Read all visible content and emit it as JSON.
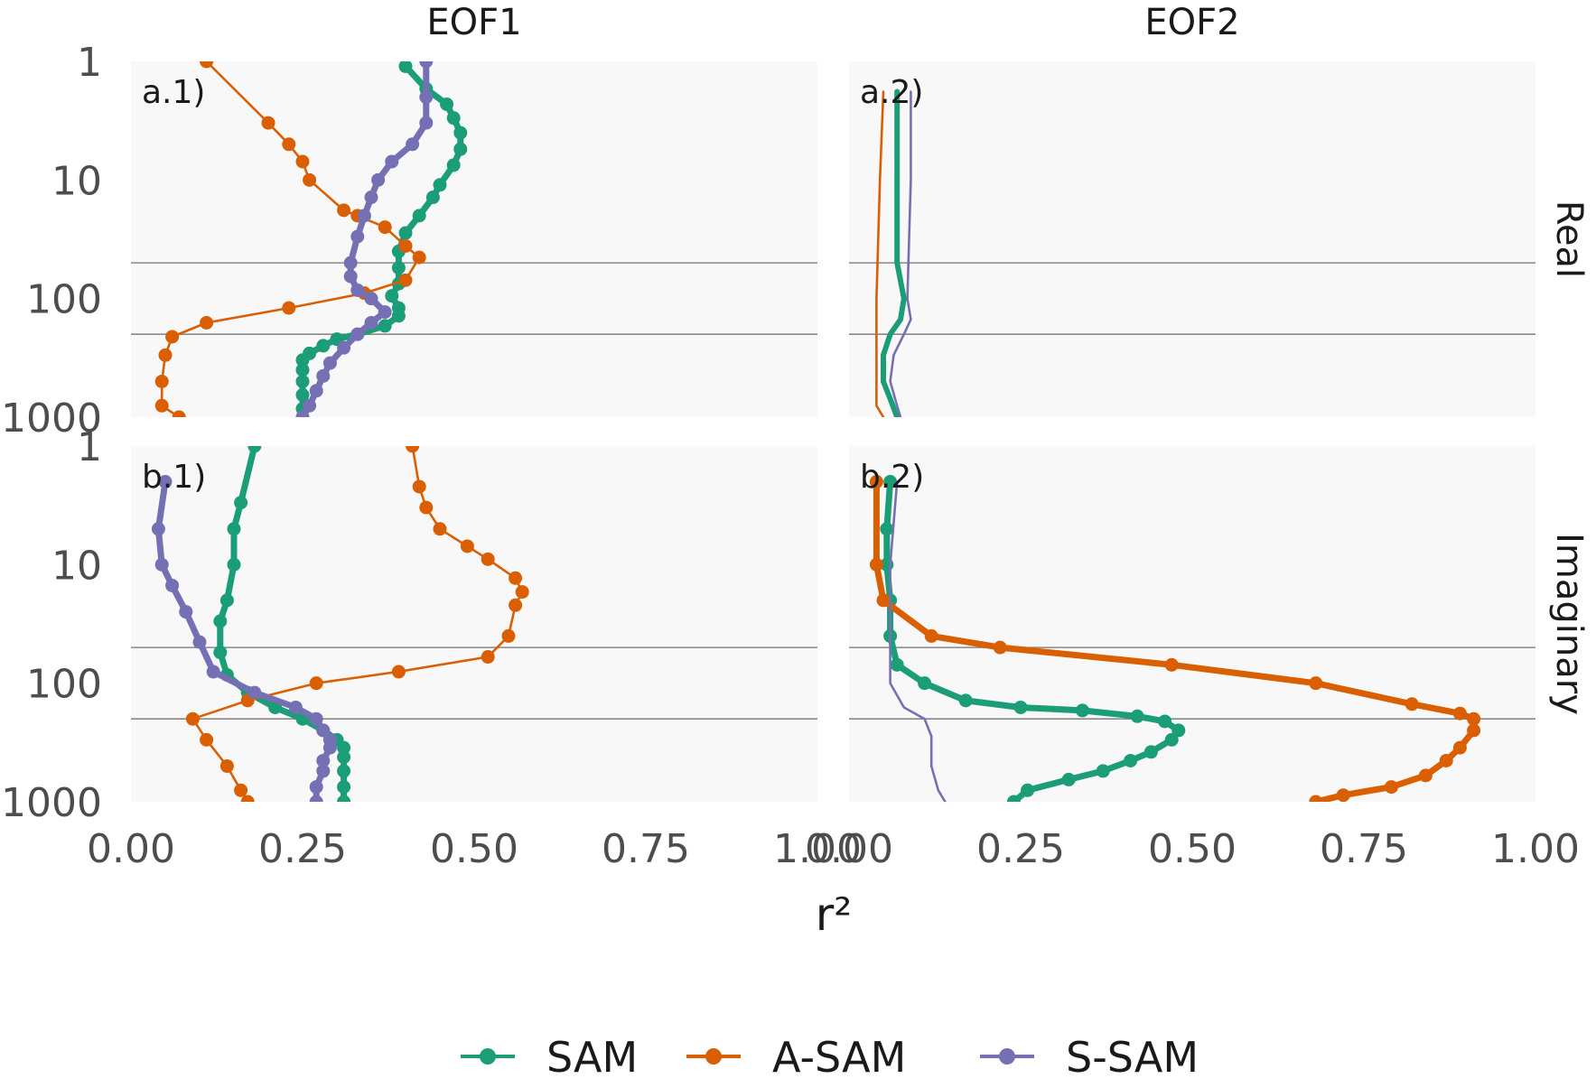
{
  "colors": {
    "SAM": "#1b9e77",
    "A-SAM": "#d95f02",
    "S-SAM": "#7570b3"
  },
  "chart_data": {
    "type": "line",
    "xlabel": "r²",
    "ylabel": "",
    "xlim": [
      0,
      1
    ],
    "ylim": [
      1000,
      1
    ],
    "y_scale": "log",
    "x_ticks": [
      "0.00",
      "0.25",
      "0.50",
      "0.75",
      "1.00"
    ],
    "y_ticks": [
      "1",
      "10",
      "100",
      "1000"
    ],
    "columns": [
      "EOF1",
      "EOF2"
    ],
    "rows": [
      "Real",
      "Imaginary"
    ],
    "hlines": [
      50,
      200
    ],
    "legend": {
      "position": "bottom",
      "entries": [
        "SAM",
        "A-SAM",
        "S-SAM"
      ]
    },
    "panels": [
      {
        "tag": "a.1)",
        "column": "EOF1",
        "row": "Real",
        "series": [
          {
            "name": "SAM",
            "emphasis": "thick-points",
            "points": [
              [
                0.4,
                1.1
              ],
              [
                0.43,
                1.7
              ],
              [
                0.46,
                2.3
              ],
              [
                0.47,
                3
              ],
              [
                0.48,
                4
              ],
              [
                0.48,
                5.5
              ],
              [
                0.47,
                7.5
              ],
              [
                0.45,
                11
              ],
              [
                0.44,
                14
              ],
              [
                0.42,
                20
              ],
              [
                0.4,
                28
              ],
              [
                0.39,
                40
              ],
              [
                0.39,
                55
              ],
              [
                0.39,
                75
              ],
              [
                0.38,
                95
              ],
              [
                0.39,
                120
              ],
              [
                0.39,
                140
              ],
              [
                0.37,
                170
              ],
              [
                0.33,
                200
              ],
              [
                0.3,
                220
              ],
              [
                0.28,
                250
              ],
              [
                0.26,
                290
              ],
              [
                0.25,
                330
              ],
              [
                0.25,
                400
              ],
              [
                0.25,
                500
              ],
              [
                0.25,
                650
              ],
              [
                0.25,
                850
              ],
              [
                0.25,
                1000
              ]
            ]
          },
          {
            "name": "A-SAM",
            "emphasis": "thin-points",
            "points": [
              [
                0.11,
                1
              ],
              [
                0.2,
                3.3
              ],
              [
                0.23,
                5
              ],
              [
                0.25,
                7
              ],
              [
                0.26,
                10
              ],
              [
                0.31,
                18
              ],
              [
                0.33,
                20
              ],
              [
                0.37,
                25
              ],
              [
                0.4,
                36
              ],
              [
                0.42,
                45
              ],
              [
                0.4,
                70
              ],
              [
                0.34,
                90
              ],
              [
                0.23,
                120
              ],
              [
                0.11,
                160
              ],
              [
                0.06,
                210
              ],
              [
                0.05,
                300
              ],
              [
                0.045,
                500
              ],
              [
                0.045,
                800
              ],
              [
                0.07,
                1000
              ]
            ]
          },
          {
            "name": "S-SAM",
            "emphasis": "thick-points",
            "points": [
              [
                0.43,
                1
              ],
              [
                0.43,
                2
              ],
              [
                0.43,
                3.3
              ],
              [
                0.41,
                5
              ],
              [
                0.38,
                7
              ],
              [
                0.36,
                10
              ],
              [
                0.35,
                14
              ],
              [
                0.34,
                20
              ],
              [
                0.33,
                30
              ],
              [
                0.32,
                50
              ],
              [
                0.32,
                65
              ],
              [
                0.33,
                85
              ],
              [
                0.35,
                100
              ],
              [
                0.37,
                130
              ],
              [
                0.35,
                160
              ],
              [
                0.33,
                200
              ],
              [
                0.31,
                260
              ],
              [
                0.29,
                350
              ],
              [
                0.28,
                450
              ],
              [
                0.27,
                600
              ],
              [
                0.26,
                800
              ],
              [
                0.25,
                1000
              ]
            ]
          }
        ]
      },
      {
        "tag": "a.2)",
        "column": "EOF2",
        "row": "Real",
        "series": [
          {
            "name": "SAM",
            "emphasis": "thick",
            "points": [
              [
                0.07,
                1.8
              ],
              [
                0.07,
                5
              ],
              [
                0.07,
                20
              ],
              [
                0.07,
                50
              ],
              [
                0.08,
                100
              ],
              [
                0.075,
                150
              ],
              [
                0.06,
                200
              ],
              [
                0.05,
                300
              ],
              [
                0.05,
                500
              ],
              [
                0.06,
                700
              ],
              [
                0.07,
                1000
              ]
            ]
          },
          {
            "name": "A-SAM",
            "emphasis": "thin",
            "points": [
              [
                0.05,
                1.8
              ],
              [
                0.045,
                10
              ],
              [
                0.04,
                100
              ],
              [
                0.04,
                400
              ],
              [
                0.04,
                800
              ],
              [
                0.05,
                1000
              ]
            ]
          },
          {
            "name": "S-SAM",
            "emphasis": "thin",
            "points": [
              [
                0.09,
                1.8
              ],
              [
                0.09,
                10
              ],
              [
                0.085,
                100
              ],
              [
                0.09,
                150
              ],
              [
                0.08,
                200
              ],
              [
                0.065,
                300
              ],
              [
                0.06,
                500
              ],
              [
                0.07,
                800
              ],
              [
                0.075,
                1000
              ]
            ]
          }
        ]
      },
      {
        "tag": "b.1)",
        "column": "EOF1",
        "row": "Imaginary",
        "series": [
          {
            "name": "SAM",
            "emphasis": "thick-points",
            "points": [
              [
                0.18,
                1
              ],
              [
                0.16,
                3
              ],
              [
                0.15,
                5
              ],
              [
                0.15,
                10
              ],
              [
                0.14,
                20
              ],
              [
                0.13,
                30
              ],
              [
                0.13,
                55
              ],
              [
                0.14,
                85
              ],
              [
                0.17,
                120
              ],
              [
                0.21,
                160
              ],
              [
                0.25,
                200
              ],
              [
                0.28,
                250
              ],
              [
                0.3,
                300
              ],
              [
                0.31,
                350
              ],
              [
                0.31,
                420
              ],
              [
                0.31,
                550
              ],
              [
                0.31,
                750
              ],
              [
                0.31,
                1000
              ]
            ]
          },
          {
            "name": "A-SAM",
            "emphasis": "thin-points",
            "points": [
              [
                0.41,
                1
              ],
              [
                0.42,
                2.2
              ],
              [
                0.43,
                3.3
              ],
              [
                0.45,
                5
              ],
              [
                0.49,
                7
              ],
              [
                0.52,
                9
              ],
              [
                0.56,
                13
              ],
              [
                0.57,
                17
              ],
              [
                0.56,
                22
              ],
              [
                0.55,
                40
              ],
              [
                0.52,
                60
              ],
              [
                0.39,
                80
              ],
              [
                0.27,
                100
              ],
              [
                0.17,
                140
              ],
              [
                0.09,
                200
              ],
              [
                0.11,
                300
              ],
              [
                0.14,
                500
              ],
              [
                0.16,
                800
              ],
              [
                0.17,
                1000
              ]
            ]
          },
          {
            "name": "S-SAM",
            "emphasis": "thick-points",
            "points": [
              [
                0.05,
                2
              ],
              [
                0.04,
                5
              ],
              [
                0.045,
                10
              ],
              [
                0.06,
                15
              ],
              [
                0.08,
                25
              ],
              [
                0.1,
                45
              ],
              [
                0.12,
                80
              ],
              [
                0.18,
                120
              ],
              [
                0.24,
                160
              ],
              [
                0.27,
                200
              ],
              [
                0.28,
                250
              ],
              [
                0.29,
                300
              ],
              [
                0.29,
                350
              ],
              [
                0.28,
                450
              ],
              [
                0.28,
                550
              ],
              [
                0.27,
                750
              ],
              [
                0.27,
                1000
              ]
            ]
          }
        ]
      },
      {
        "tag": "b.2)",
        "column": "EOF2",
        "row": "Imaginary",
        "series": [
          {
            "name": "SAM",
            "emphasis": "thick-points",
            "points": [
              [
                0.06,
                2
              ],
              [
                0.055,
                5
              ],
              [
                0.055,
                10
              ],
              [
                0.06,
                20
              ],
              [
                0.06,
                40
              ],
              [
                0.07,
                70
              ],
              [
                0.11,
                100
              ],
              [
                0.17,
                140
              ],
              [
                0.25,
                160
              ],
              [
                0.34,
                170
              ],
              [
                0.42,
                190
              ],
              [
                0.46,
                210
              ],
              [
                0.48,
                250
              ],
              [
                0.47,
                300
              ],
              [
                0.44,
                380
              ],
              [
                0.41,
                450
              ],
              [
                0.37,
                550
              ],
              [
                0.32,
                650
              ],
              [
                0.26,
                800
              ],
              [
                0.24,
                1000
              ]
            ]
          },
          {
            "name": "A-SAM",
            "emphasis": "thick-points",
            "points": [
              [
                0.04,
                2
              ],
              [
                0.04,
                10
              ],
              [
                0.05,
                20
              ],
              [
                0.12,
                40
              ],
              [
                0.22,
                50
              ],
              [
                0.47,
                70
              ],
              [
                0.68,
                100
              ],
              [
                0.82,
                150
              ],
              [
                0.89,
                180
              ],
              [
                0.91,
                200
              ],
              [
                0.91,
                250
              ],
              [
                0.89,
                350
              ],
              [
                0.87,
                450
              ],
              [
                0.84,
                600
              ],
              [
                0.79,
                750
              ],
              [
                0.72,
                880
              ],
              [
                0.68,
                1000
              ]
            ]
          },
          {
            "name": "S-SAM",
            "emphasis": "thin",
            "points": [
              [
                0.07,
                2
              ],
              [
                0.06,
                10
              ],
              [
                0.06,
                40
              ],
              [
                0.06,
                100
              ],
              [
                0.08,
                160
              ],
              [
                0.11,
                200
              ],
              [
                0.12,
                280
              ],
              [
                0.12,
                500
              ],
              [
                0.13,
                800
              ],
              [
                0.14,
                1000
              ]
            ]
          }
        ]
      }
    ]
  }
}
